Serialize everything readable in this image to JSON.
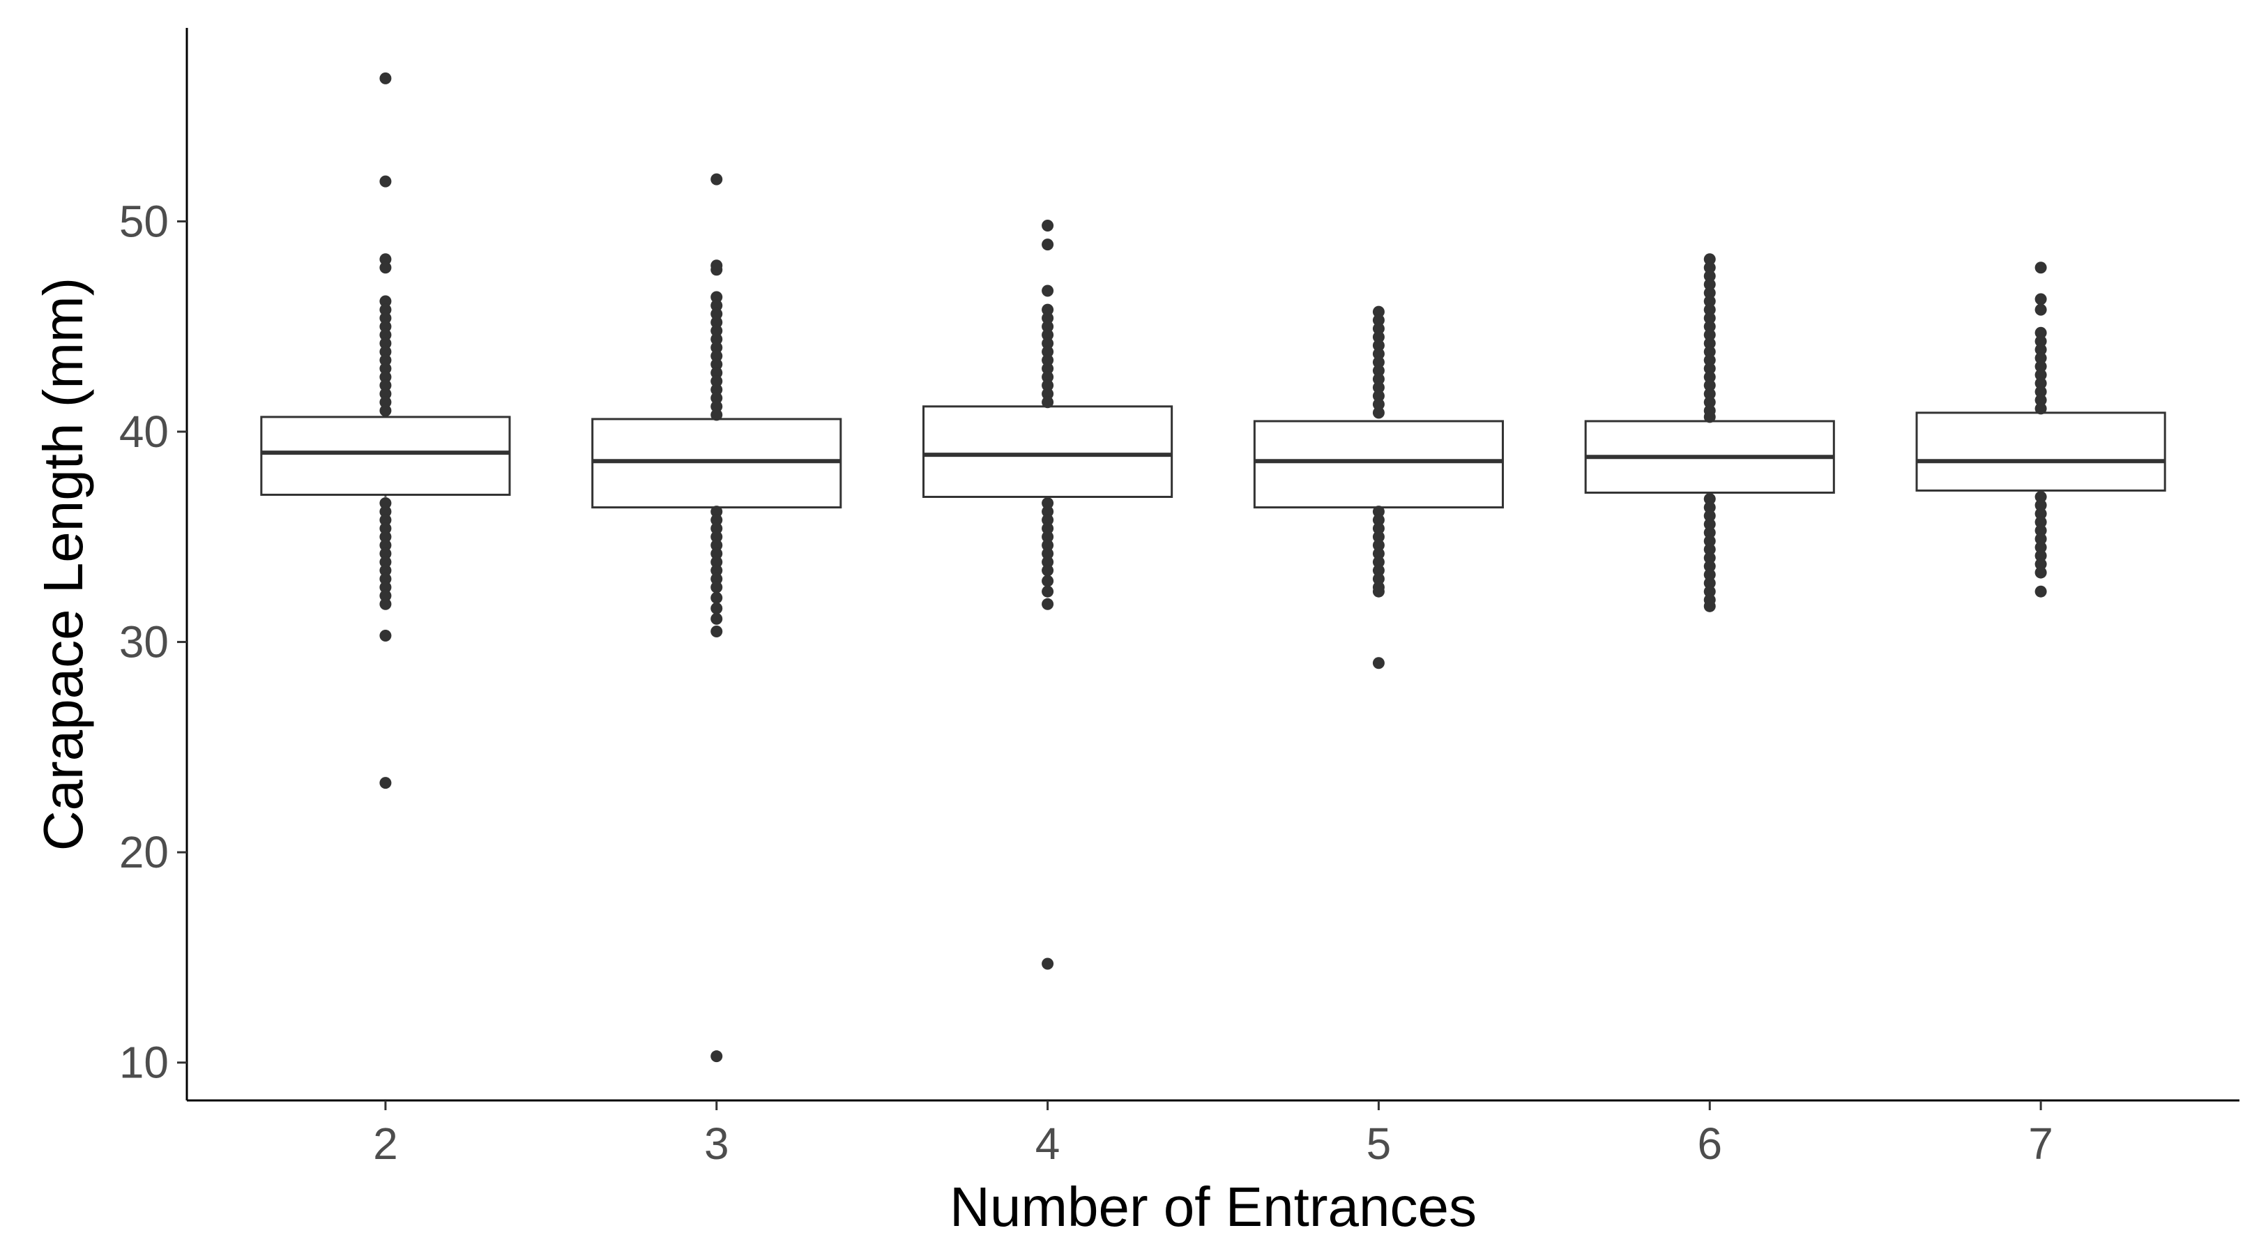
{
  "chart_data": {
    "type": "boxplot",
    "xlabel": "Number of Entrances",
    "ylabel": "Carapace Length (mm)",
    "ylim": [
      8.2,
      59.2
    ],
    "yticks": [
      10,
      20,
      30,
      40,
      50
    ],
    "grid": false,
    "legend": "none",
    "categories": [
      "2",
      "3",
      "4",
      "5",
      "6",
      "7"
    ],
    "boxes": [
      {
        "category": "2",
        "q1": 37.0,
        "median": 39.0,
        "q3": 40.7,
        "whisker_low": 36.9,
        "whisker_high": 40.7,
        "outliers": [
          56.8,
          51.9,
          48.2,
          47.8,
          46.2,
          45.8,
          45.4,
          45.0,
          44.6,
          44.2,
          43.8,
          43.4,
          43.0,
          42.6,
          42.2,
          41.8,
          41.4,
          41.0,
          36.6,
          36.2,
          35.8,
          35.4,
          35.0,
          34.6,
          34.2,
          33.8,
          33.4,
          33.0,
          32.6,
          32.2,
          31.8,
          30.3,
          23.3
        ]
      },
      {
        "category": "3",
        "q1": 36.4,
        "median": 38.6,
        "q3": 40.6,
        "whisker_low": 36.4,
        "whisker_high": 40.6,
        "outliers": [
          52.0,
          47.9,
          47.7,
          46.4,
          46.0,
          45.6,
          45.2,
          44.8,
          44.4,
          44.0,
          43.6,
          43.2,
          42.8,
          42.4,
          42.0,
          41.6,
          41.2,
          40.8,
          36.2,
          35.8,
          35.4,
          35.0,
          34.6,
          34.2,
          33.8,
          33.4,
          33.0,
          32.6,
          32.1,
          31.6,
          31.1,
          30.5,
          10.3
        ]
      },
      {
        "category": "4",
        "q1": 36.9,
        "median": 38.9,
        "q3": 41.2,
        "whisker_low": 36.8,
        "whisker_high": 41.2,
        "outliers": [
          49.8,
          48.9,
          46.7,
          45.8,
          45.4,
          45.0,
          44.6,
          44.2,
          43.8,
          43.4,
          43.0,
          42.6,
          42.2,
          41.8,
          41.4,
          36.6,
          36.2,
          35.8,
          35.4,
          35.0,
          34.6,
          34.2,
          33.8,
          33.4,
          32.9,
          32.4,
          31.8,
          14.7
        ]
      },
      {
        "category": "5",
        "q1": 36.4,
        "median": 38.6,
        "q3": 40.5,
        "whisker_low": 36.4,
        "whisker_high": 40.5,
        "outliers": [
          45.7,
          45.3,
          44.9,
          44.5,
          44.1,
          43.7,
          43.3,
          42.9,
          42.5,
          42.1,
          41.7,
          41.3,
          40.9,
          36.2,
          35.8,
          35.4,
          35.0,
          34.6,
          34.2,
          33.8,
          33.4,
          33.0,
          32.6,
          32.4,
          29.0
        ]
      },
      {
        "category": "6",
        "q1": 37.1,
        "median": 38.8,
        "q3": 40.5,
        "whisker_low": 37.0,
        "whisker_high": 40.5,
        "outliers": [
          48.2,
          47.8,
          47.4,
          47.0,
          46.6,
          46.2,
          45.8,
          45.4,
          45.0,
          44.6,
          44.2,
          43.8,
          43.4,
          43.0,
          42.6,
          42.2,
          41.8,
          41.4,
          41.0,
          40.7,
          36.8,
          36.4,
          36.0,
          35.6,
          35.2,
          34.8,
          34.4,
          34.0,
          33.6,
          33.2,
          32.8,
          32.4,
          32.0,
          31.7
        ]
      },
      {
        "category": "7",
        "q1": 37.2,
        "median": 38.6,
        "q3": 40.9,
        "whisker_low": 37.1,
        "whisker_high": 40.9,
        "outliers": [
          47.8,
          46.3,
          45.8,
          44.7,
          44.3,
          43.9,
          43.5,
          43.1,
          42.7,
          42.3,
          41.9,
          41.5,
          41.1,
          36.9,
          36.5,
          36.1,
          35.7,
          35.3,
          34.9,
          34.5,
          34.1,
          33.7,
          33.3,
          32.4
        ]
      }
    ]
  }
}
